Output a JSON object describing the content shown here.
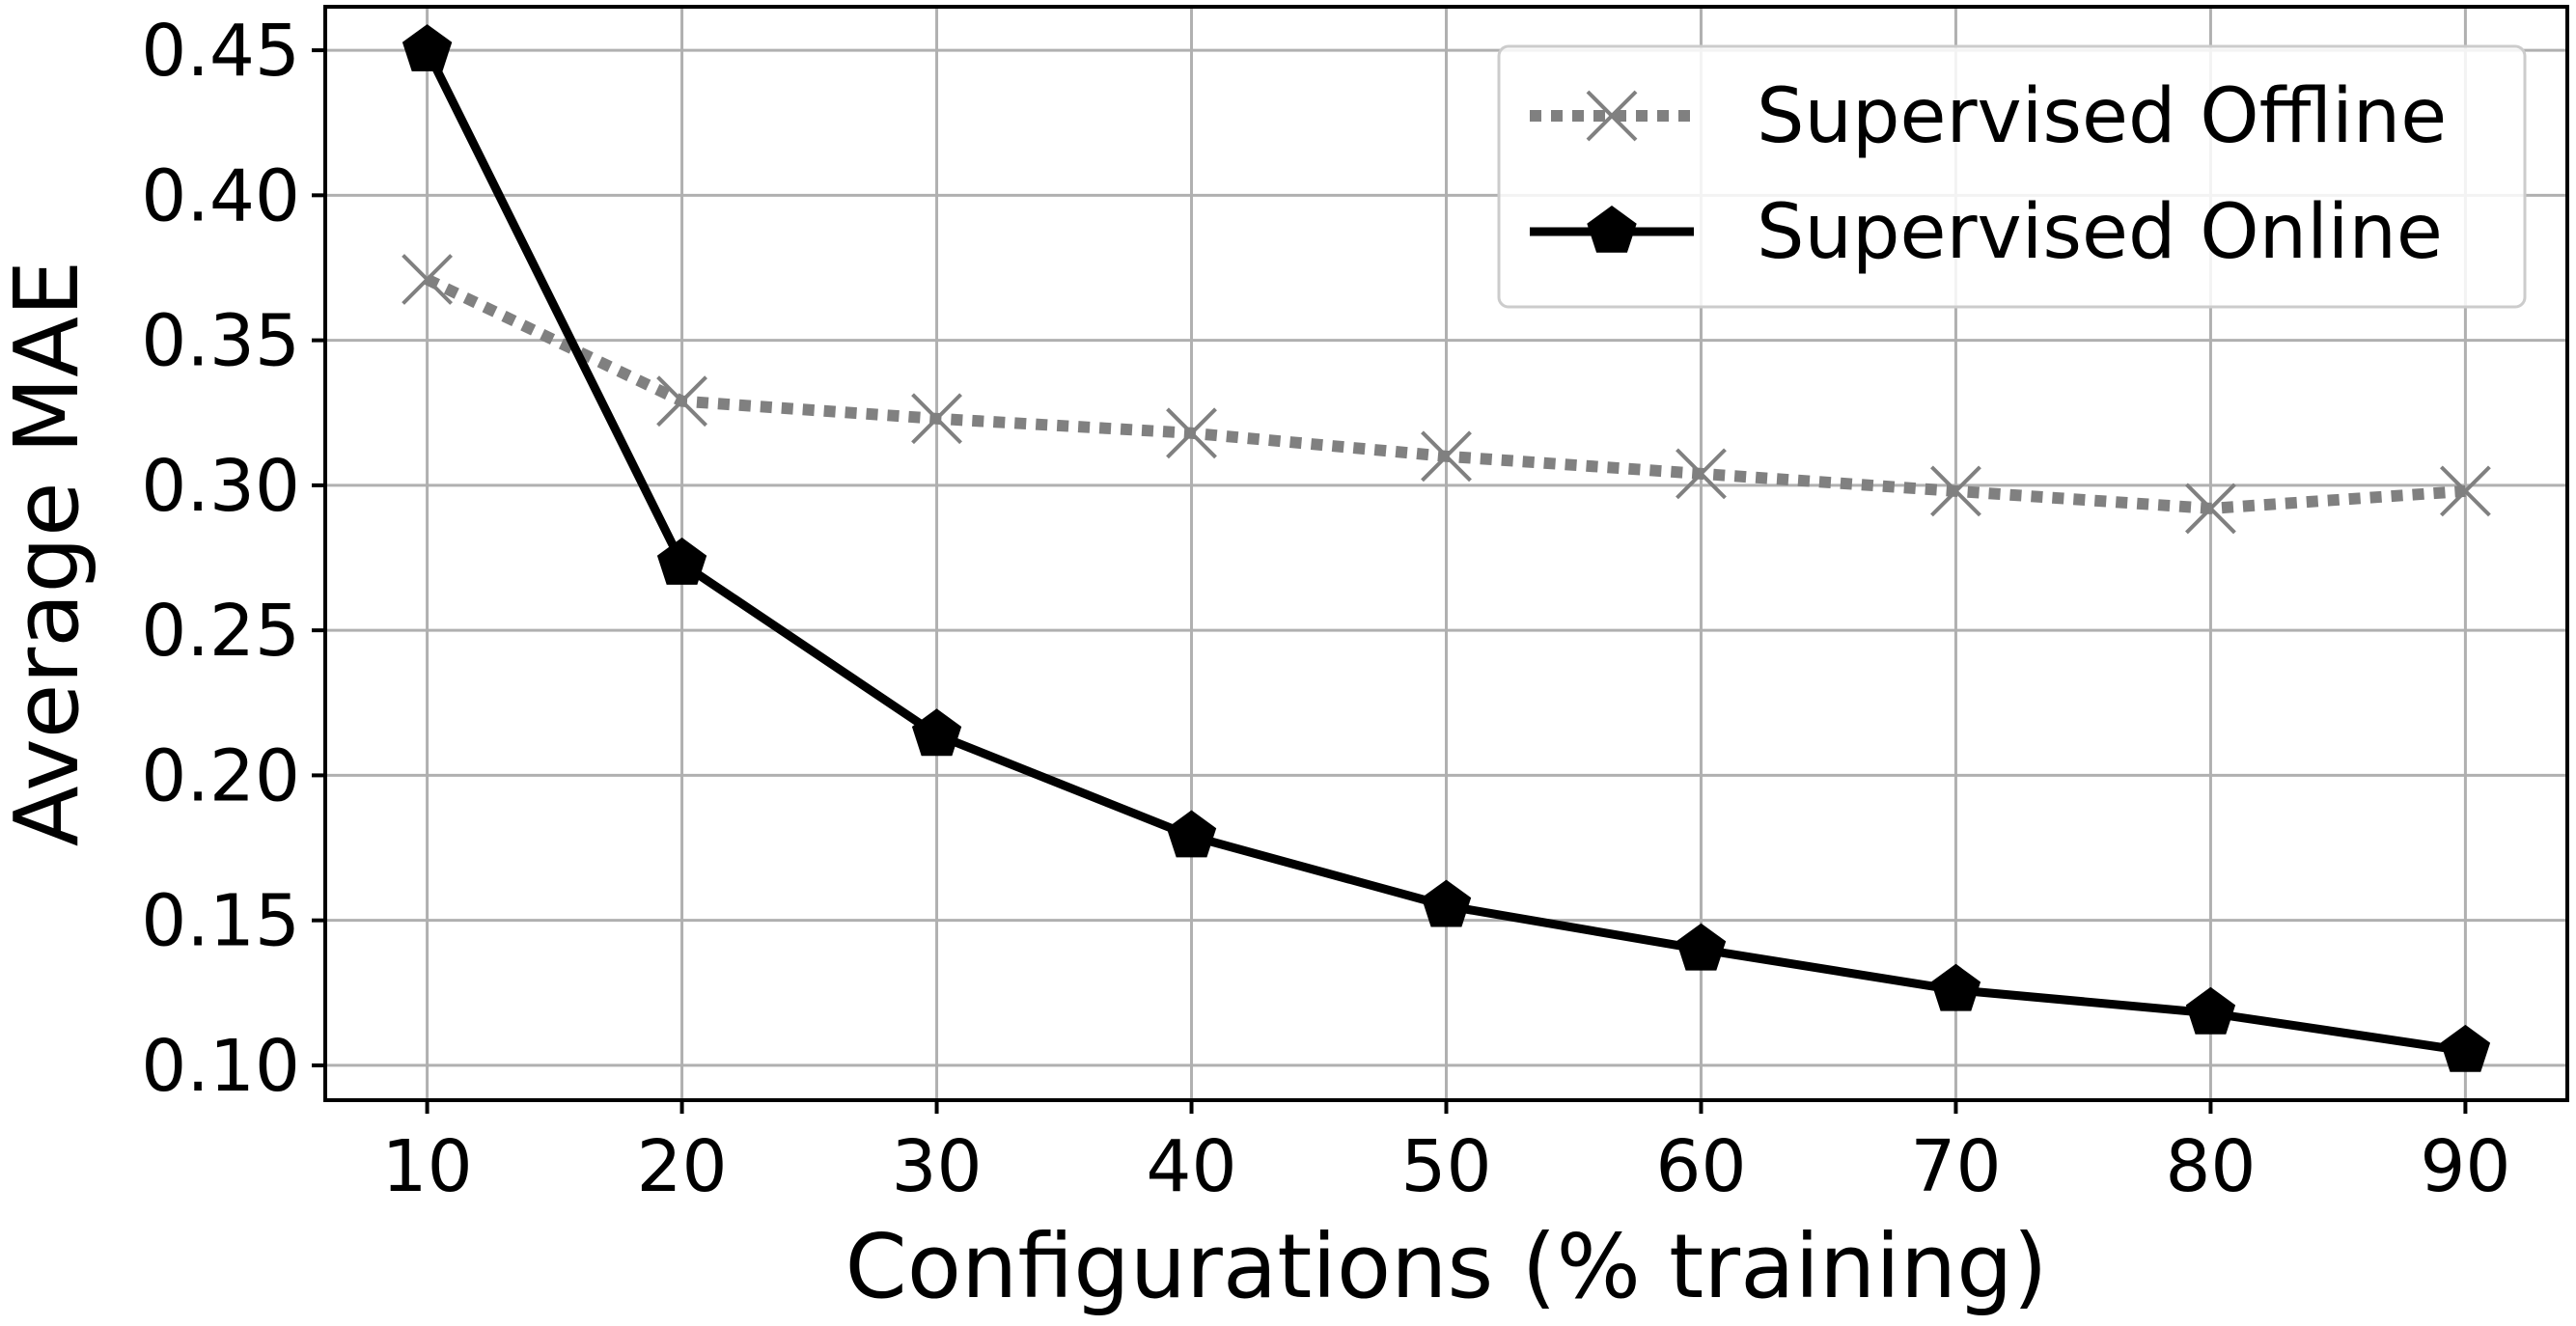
{
  "chart_data": {
    "type": "line",
    "title": "",
    "xlabel": "Configurations (% training)",
    "ylabel": "Average MAE",
    "x": [
      10,
      20,
      30,
      40,
      50,
      60,
      70,
      80,
      90
    ],
    "xlim": [
      6,
      94
    ],
    "ylim": [
      0.088,
      0.465
    ],
    "xticks": [
      10,
      20,
      30,
      40,
      50,
      60,
      70,
      80,
      90
    ],
    "yticks": [
      0.1,
      0.15,
      0.2,
      0.25,
      0.3,
      0.35,
      0.4,
      0.45
    ],
    "ytick_labels": [
      "0.10",
      "0.15",
      "0.20",
      "0.25",
      "0.30",
      "0.35",
      "0.40",
      "0.45"
    ],
    "grid": true,
    "legend_position": "top-right",
    "series": [
      {
        "name": "Supervised Offline",
        "values": [
          0.371,
          0.329,
          0.323,
          0.318,
          0.31,
          0.304,
          0.298,
          0.292,
          0.298
        ],
        "color": "#808080",
        "line_style": "dotted",
        "marker": "x"
      },
      {
        "name": "Supervised Online",
        "values": [
          0.45,
          0.273,
          0.214,
          0.179,
          0.155,
          0.14,
          0.126,
          0.118,
          0.105
        ],
        "color": "#000000",
        "line_style": "solid",
        "marker": "pentagon"
      }
    ]
  }
}
